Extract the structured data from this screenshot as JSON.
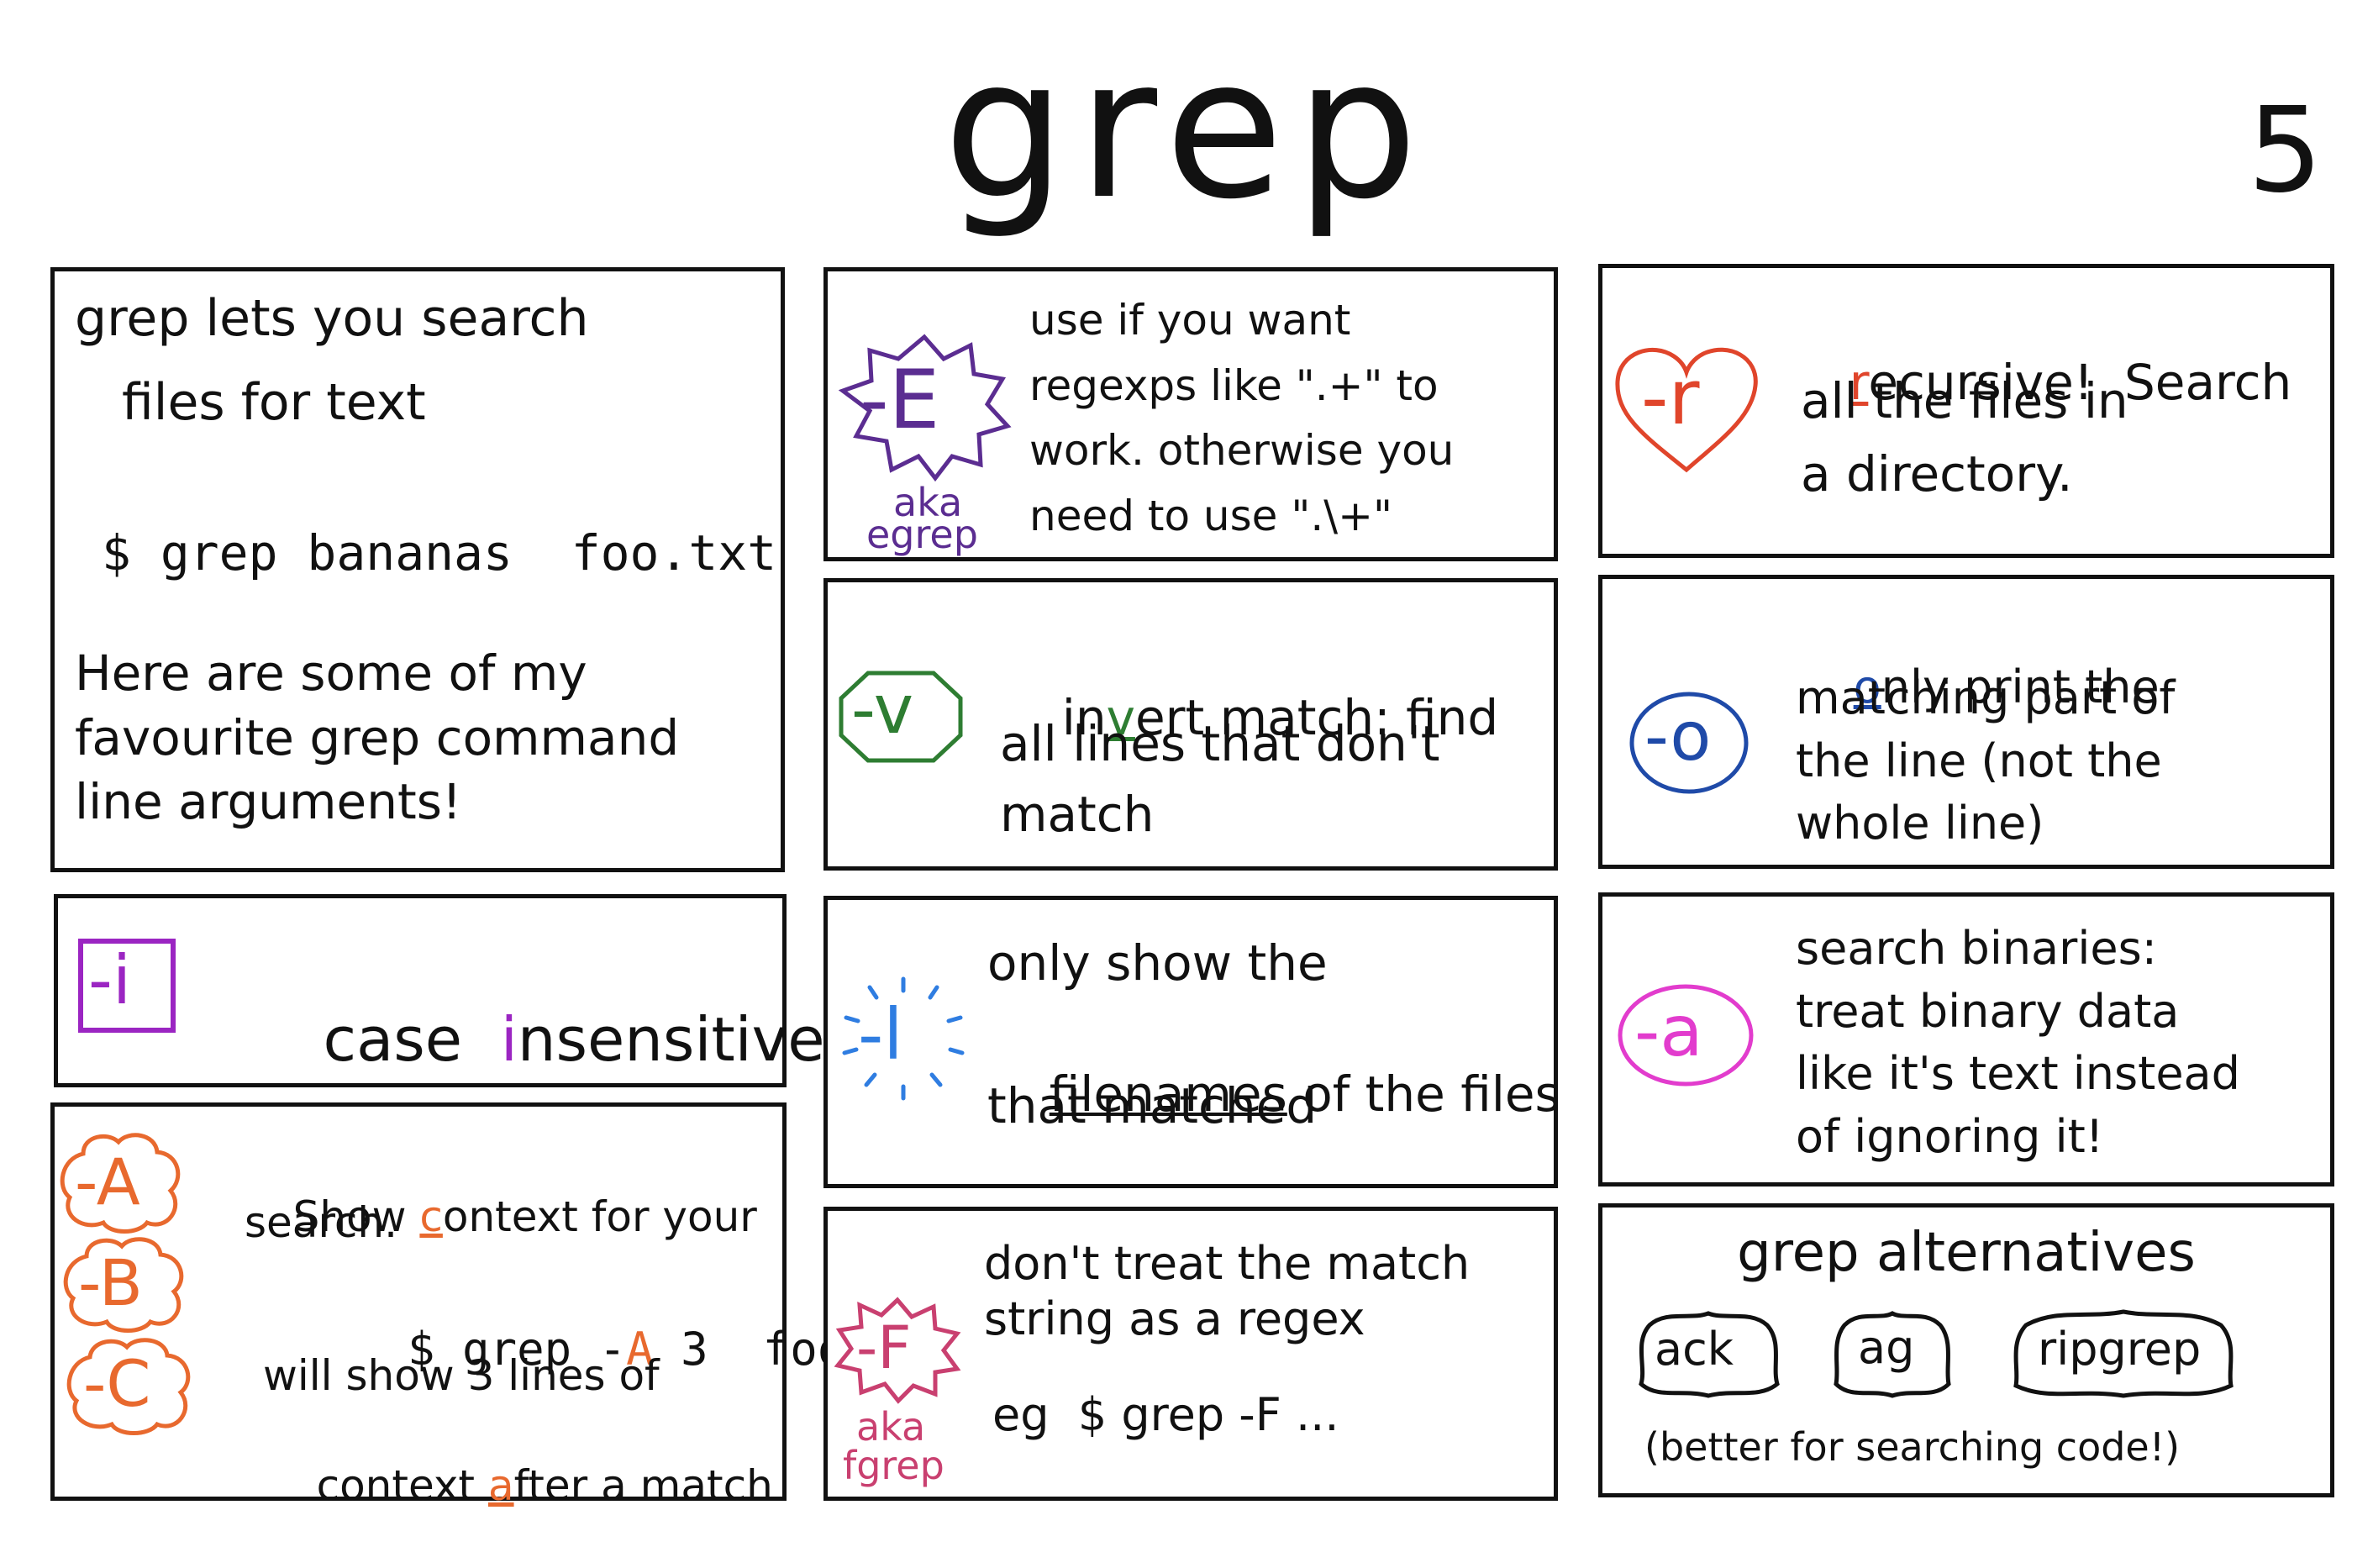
{
  "header": {
    "title": "grep",
    "page_number": "5"
  },
  "colors": {
    "E": "#5b2d91",
    "r": "#e0452b",
    "v": "#2e7d32",
    "o": "#1f4aa8",
    "i": "#9b25c2",
    "l": "#2f7de1",
    "a": "#e23ccd",
    "ABC": "#e8692e",
    "F": "#c94070"
  },
  "intro": {
    "line1": "grep lets you search",
    "line2": "files for text",
    "command": "$ grep bananas  foo.txt",
    "desc": "Here are some of my\nfavourite grep command\nline arguments!"
  },
  "opt_E": {
    "badge": "-E",
    "aka": "aka",
    "alias": "egrep",
    "text": "use if you want\nregexps  like \".+\" to\nwork. otherwise you\nneed to use \".\\+\""
  },
  "opt_r": {
    "badge": "-r",
    "hl_letter": "r",
    "text_rest": "ecursive!  Search",
    "text2": "all the files in\na directory."
  },
  "opt_v": {
    "badge": "-v",
    "pre": "in",
    "hl_letter": "v",
    "post": "ert match: find",
    "text2": "all lines that don't\nmatch"
  },
  "opt_o": {
    "badge": "-o",
    "hl_letter": "o",
    "post": "nly print the",
    "text2": "matching part of\nthe line (not the\nwhole line)"
  },
  "opt_i": {
    "badge": "-i",
    "pre": "case  ",
    "hl_letter": "i",
    "post": "nsensitive"
  },
  "opt_l": {
    "badge": "-l",
    "line1": "only show the",
    "underlined": "filenames",
    "line2_rest": " of the files",
    "line3": "that matched"
  },
  "opt_a": {
    "badge": "-a",
    "text": "search binaries:\ntreat binary data\nlike it's text instead\nof ignoring it!"
  },
  "opt_ABC": {
    "badges": [
      "-A",
      "-B",
      "-C"
    ],
    "pre": "Show ",
    "hl_letter": "c",
    "post": "ontext for your",
    "line2": "search.",
    "cmd_pre": "$ grep -",
    "cmd_hl": "A",
    "cmd_post": " 3  foo",
    "line4": "will show 3 lines of",
    "line5_pre": "context ",
    "line5_hl": "a",
    "line5_post": "fter a match"
  },
  "opt_F": {
    "badge": "-F",
    "aka": "aka",
    "alias": "fgrep",
    "text": "don't treat the match\nstring as a regex",
    "example": "eg  $ grep -F ..."
  },
  "alternatives": {
    "title": "grep alternatives",
    "tools": [
      "ack",
      "ag",
      "ripgrep"
    ],
    "note": "(better for searching code!)"
  }
}
